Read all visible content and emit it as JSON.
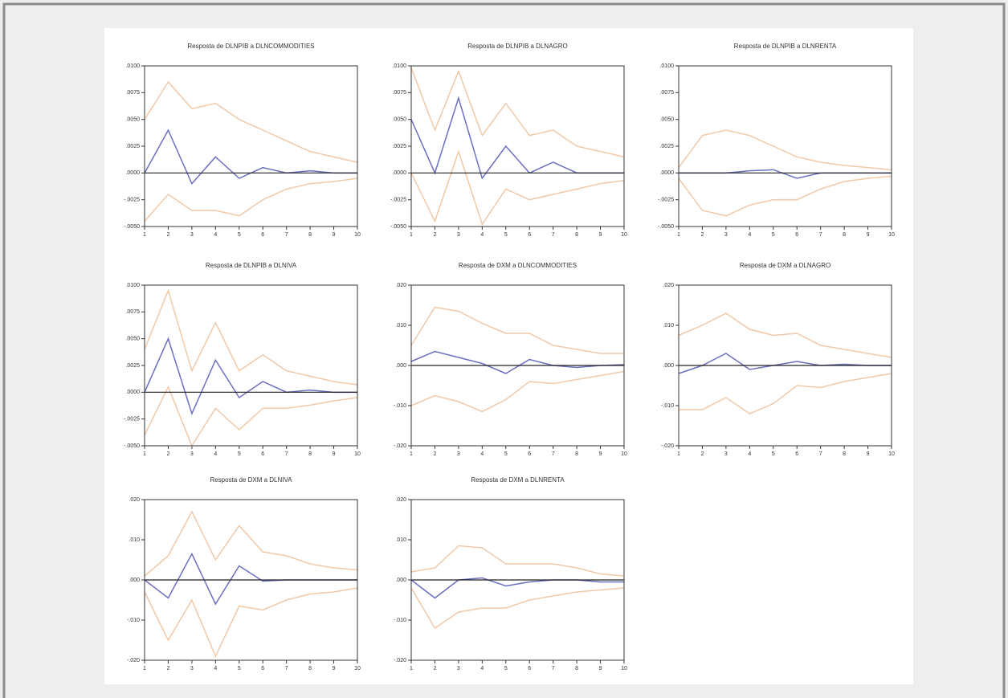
{
  "chart_data": [
    {
      "type": "line",
      "title": "Resposta de DLNPIB a DLNCOMMODITIES",
      "x": [
        1,
        2,
        3,
        4,
        5,
        6,
        7,
        8,
        9,
        10
      ],
      "xlim": [
        1,
        10
      ],
      "xticks": [
        1,
        2,
        3,
        4,
        5,
        6,
        7,
        8,
        9,
        10
      ],
      "ylim": [
        -0.005,
        0.01
      ],
      "yticks": [
        {
          "value": 0.01,
          "label": ".0100"
        },
        {
          "value": 0.0075,
          "label": ".0075"
        },
        {
          "value": 0.005,
          "label": ".0050"
        },
        {
          "value": 0.0025,
          "label": ".0025"
        },
        {
          "value": 0,
          "label": ".0000"
        },
        {
          "value": -0.0025,
          "label": "-.0025"
        },
        {
          "value": -0.005,
          "label": "-.0050"
        }
      ],
      "reference_line": 0,
      "series": [
        {
          "color": "#6b6fc0",
          "values": [
            0,
            0.004,
            -0.001,
            0.0015,
            -0.0005,
            0.0005,
            0,
            0.0002,
            0,
            0
          ]
        },
        {
          "color": "#f0c9a8",
          "values": [
            0.005,
            0.0085,
            0.006,
            0.0065,
            0.005,
            0.004,
            0.003,
            0.002,
            0.0015,
            0.001
          ]
        },
        {
          "color": "#f0c9a8",
          "values": [
            -0.0045,
            -0.002,
            -0.0035,
            -0.0035,
            -0.004,
            -0.0025,
            -0.0015,
            -0.001,
            -0.0008,
            -0.0005
          ]
        }
      ]
    },
    {
      "type": "line",
      "title": "Resposta de DLNPIB a DLNAGRO",
      "x": [
        1,
        2,
        3,
        4,
        5,
        6,
        7,
        8,
        9,
        10
      ],
      "xlim": [
        1,
        10
      ],
      "xticks": [
        1,
        2,
        3,
        4,
        5,
        6,
        7,
        8,
        9,
        10
      ],
      "ylim": [
        -0.005,
        0.01
      ],
      "yticks": [
        {
          "value": 0.01,
          "label": ".0100"
        },
        {
          "value": 0.0075,
          "label": ".0075"
        },
        {
          "value": 0.005,
          "label": ".0050"
        },
        {
          "value": 0.0025,
          "label": ".0025"
        },
        {
          "value": 0,
          "label": ".0000"
        },
        {
          "value": -0.0025,
          "label": "-.0025"
        },
        {
          "value": -0.005,
          "label": "-.0050"
        }
      ],
      "reference_line": 0,
      "series": [
        {
          "color": "#6b6fc0",
          "values": [
            0.005,
            0,
            0.007,
            -0.0005,
            0.0025,
            0,
            0.001,
            0,
            0,
            0
          ]
        },
        {
          "color": "#f0c9a8",
          "values": [
            0.0098,
            0.004,
            0.0095,
            0.0035,
            0.0065,
            0.0035,
            0.004,
            0.0025,
            0.002,
            0.0015
          ]
        },
        {
          "color": "#f0c9a8",
          "values": [
            0,
            -0.0045,
            0.002,
            -0.0048,
            -0.0015,
            -0.0025,
            -0.002,
            -0.0015,
            -0.001,
            -0.0007
          ]
        }
      ]
    },
    {
      "type": "line",
      "title": "Resposta de DLNPIB a DLNRENTA",
      "x": [
        1,
        2,
        3,
        4,
        5,
        6,
        7,
        8,
        9,
        10
      ],
      "xlim": [
        1,
        10
      ],
      "xticks": [
        1,
        2,
        3,
        4,
        5,
        6,
        7,
        8,
        9,
        10
      ],
      "ylim": [
        -0.005,
        0.01
      ],
      "yticks": [
        {
          "value": 0.01,
          "label": ".0100"
        },
        {
          "value": 0.0075,
          "label": ".0075"
        },
        {
          "value": 0.005,
          "label": ".0050"
        },
        {
          "value": 0.0025,
          "label": ".0025"
        },
        {
          "value": 0,
          "label": ".0000"
        },
        {
          "value": -0.0025,
          "label": "-.0025"
        },
        {
          "value": -0.005,
          "label": "-.0050"
        }
      ],
      "reference_line": 0,
      "series": [
        {
          "color": "#6b6fc0",
          "values": [
            0,
            0,
            0,
            0.0002,
            0.0003,
            -0.0005,
            0,
            0,
            0,
            0
          ]
        },
        {
          "color": "#f0c9a8",
          "values": [
            0.0005,
            0.0035,
            0.004,
            0.0035,
            0.0025,
            0.0015,
            0.001,
            0.0007,
            0.0005,
            0.0003
          ]
        },
        {
          "color": "#f0c9a8",
          "values": [
            -0.0005,
            -0.0035,
            -0.004,
            -0.003,
            -0.0025,
            -0.0025,
            -0.0015,
            -0.0008,
            -0.0005,
            -0.0003
          ]
        }
      ]
    },
    {
      "type": "line",
      "title": "Resposta de DLNPIB a DLNIVA",
      "x": [
        1,
        2,
        3,
        4,
        5,
        6,
        7,
        8,
        9,
        10
      ],
      "xlim": [
        1,
        10
      ],
      "xticks": [
        1,
        2,
        3,
        4,
        5,
        6,
        7,
        8,
        9,
        10
      ],
      "ylim": [
        -0.005,
        0.01
      ],
      "yticks": [
        {
          "value": 0.01,
          "label": ".0100"
        },
        {
          "value": 0.0075,
          "label": ".0075"
        },
        {
          "value": 0.005,
          "label": ".0050"
        },
        {
          "value": 0.0025,
          "label": ".0025"
        },
        {
          "value": 0,
          "label": ".0000"
        },
        {
          "value": -0.0025,
          "label": "-.0025"
        },
        {
          "value": -0.005,
          "label": "-.0050"
        }
      ],
      "reference_line": 0,
      "series": [
        {
          "color": "#6b6fc0",
          "values": [
            0,
            0.005,
            -0.002,
            0.003,
            -0.0005,
            0.001,
            0,
            0.0002,
            0,
            0
          ]
        },
        {
          "color": "#f0c9a8",
          "values": [
            0.004,
            0.0095,
            0.002,
            0.0065,
            0.002,
            0.0035,
            0.002,
            0.0015,
            0.001,
            0.0007
          ]
        },
        {
          "color": "#f0c9a8",
          "values": [
            -0.004,
            0.0005,
            -0.005,
            -0.0015,
            -0.0035,
            -0.0015,
            -0.0015,
            -0.0012,
            -0.0008,
            -0.0005
          ]
        }
      ]
    },
    {
      "type": "line",
      "title": "Resposta de DXM a DLNCOMMODITIES",
      "x": [
        1,
        2,
        3,
        4,
        5,
        6,
        7,
        8,
        9,
        10
      ],
      "xlim": [
        1,
        10
      ],
      "xticks": [
        1,
        2,
        3,
        4,
        5,
        6,
        7,
        8,
        9,
        10
      ],
      "ylim": [
        -0.02,
        0.02
      ],
      "yticks": [
        {
          "value": 0.02,
          "label": ".020"
        },
        {
          "value": 0.01,
          "label": ".010"
        },
        {
          "value": 0,
          "label": ".000"
        },
        {
          "value": -0.01,
          "label": "-.010"
        },
        {
          "value": -0.02,
          "label": "-.020"
        }
      ],
      "reference_line": 0,
      "series": [
        {
          "color": "#6b6fc0",
          "values": [
            0.001,
            0.0035,
            0.002,
            0.0005,
            -0.002,
            0.0015,
            0,
            -0.0005,
            0,
            0.0002
          ]
        },
        {
          "color": "#f0c9a8",
          "values": [
            0.005,
            0.0145,
            0.0135,
            0.0105,
            0.008,
            0.008,
            0.005,
            0.004,
            0.003,
            0.003
          ]
        },
        {
          "color": "#f0c9a8",
          "values": [
            -0.01,
            -0.0075,
            -0.009,
            -0.0115,
            -0.0085,
            -0.004,
            -0.0045,
            -0.0035,
            -0.0025,
            -0.0015
          ]
        }
      ]
    },
    {
      "type": "line",
      "title": "Resposta de DXM a DLNAGRO",
      "x": [
        1,
        2,
        3,
        4,
        5,
        6,
        7,
        8,
        9,
        10
      ],
      "xlim": [
        1,
        10
      ],
      "xticks": [
        1,
        2,
        3,
        4,
        5,
        6,
        7,
        8,
        9,
        10
      ],
      "ylim": [
        -0.02,
        0.02
      ],
      "yticks": [
        {
          "value": 0.02,
          "label": ".020"
        },
        {
          "value": 0.01,
          "label": ".010"
        },
        {
          "value": 0,
          "label": ".000"
        },
        {
          "value": -0.01,
          "label": "-.010"
        },
        {
          "value": -0.02,
          "label": "-.020"
        }
      ],
      "reference_line": 0,
      "series": [
        {
          "color": "#6b6fc0",
          "values": [
            -0.002,
            0,
            0.003,
            -0.001,
            0,
            0.001,
            0,
            0.0003,
            0,
            0
          ]
        },
        {
          "color": "#f0c9a8",
          "values": [
            0.0075,
            0.01,
            0.013,
            0.009,
            0.0075,
            0.008,
            0.005,
            0.004,
            0.003,
            0.002
          ]
        },
        {
          "color": "#f0c9a8",
          "values": [
            -0.011,
            -0.011,
            -0.008,
            -0.012,
            -0.0095,
            -0.005,
            -0.0055,
            -0.004,
            -0.003,
            -0.002
          ]
        }
      ]
    },
    {
      "type": "line",
      "title": "Resposta de DXM a DLNIVA",
      "x": [
        1,
        2,
        3,
        4,
        5,
        6,
        7,
        8,
        9,
        10
      ],
      "xlim": [
        1,
        10
      ],
      "xticks": [
        1,
        2,
        3,
        4,
        5,
        6,
        7,
        8,
        9,
        10
      ],
      "ylim": [
        -0.02,
        0.02
      ],
      "yticks": [
        {
          "value": 0.02,
          "label": ".020"
        },
        {
          "value": 0.01,
          "label": ".010"
        },
        {
          "value": 0,
          "label": ".000"
        },
        {
          "value": -0.01,
          "label": "-.010"
        },
        {
          "value": -0.02,
          "label": "-.020"
        }
      ],
      "reference_line": 0,
      "series": [
        {
          "color": "#6b6fc0",
          "values": [
            0,
            -0.0045,
            0.0065,
            -0.006,
            0.0035,
            -0.0003,
            0,
            0,
            0,
            0
          ]
        },
        {
          "color": "#f0c9a8",
          "values": [
            0.001,
            0.006,
            0.017,
            0.005,
            0.0135,
            0.007,
            0.006,
            0.004,
            0.003,
            0.0025
          ]
        },
        {
          "color": "#f0c9a8",
          "values": [
            -0.003,
            -0.015,
            -0.005,
            -0.019,
            -0.0065,
            -0.0075,
            -0.005,
            -0.0035,
            -0.003,
            -0.002
          ]
        }
      ]
    },
    {
      "type": "line",
      "title": "Resposta de DXM a DLNRENTA",
      "x": [
        1,
        2,
        3,
        4,
        5,
        6,
        7,
        8,
        9,
        10
      ],
      "xlim": [
        1,
        10
      ],
      "xticks": [
        1,
        2,
        3,
        4,
        5,
        6,
        7,
        8,
        9,
        10
      ],
      "ylim": [
        -0.02,
        0.02
      ],
      "yticks": [
        {
          "value": 0.02,
          "label": ".020"
        },
        {
          "value": 0.01,
          "label": ".010"
        },
        {
          "value": 0,
          "label": ".000"
        },
        {
          "value": -0.01,
          "label": "-.010"
        },
        {
          "value": -0.02,
          "label": "-.020"
        }
      ],
      "reference_line": 0,
      "series": [
        {
          "color": "#6b6fc0",
          "values": [
            0,
            -0.0045,
            0,
            0.0005,
            -0.0015,
            -0.0005,
            0,
            0,
            -0.0005,
            -0.0005
          ]
        },
        {
          "color": "#f0c9a8",
          "values": [
            0.002,
            0.003,
            0.0085,
            0.008,
            0.004,
            0.004,
            0.004,
            0.003,
            0.0015,
            0.001
          ]
        },
        {
          "color": "#f0c9a8",
          "values": [
            -0.002,
            -0.012,
            -0.008,
            -0.007,
            -0.007,
            -0.005,
            -0.004,
            -0.003,
            -0.0025,
            -0.002
          ]
        }
      ]
    }
  ]
}
